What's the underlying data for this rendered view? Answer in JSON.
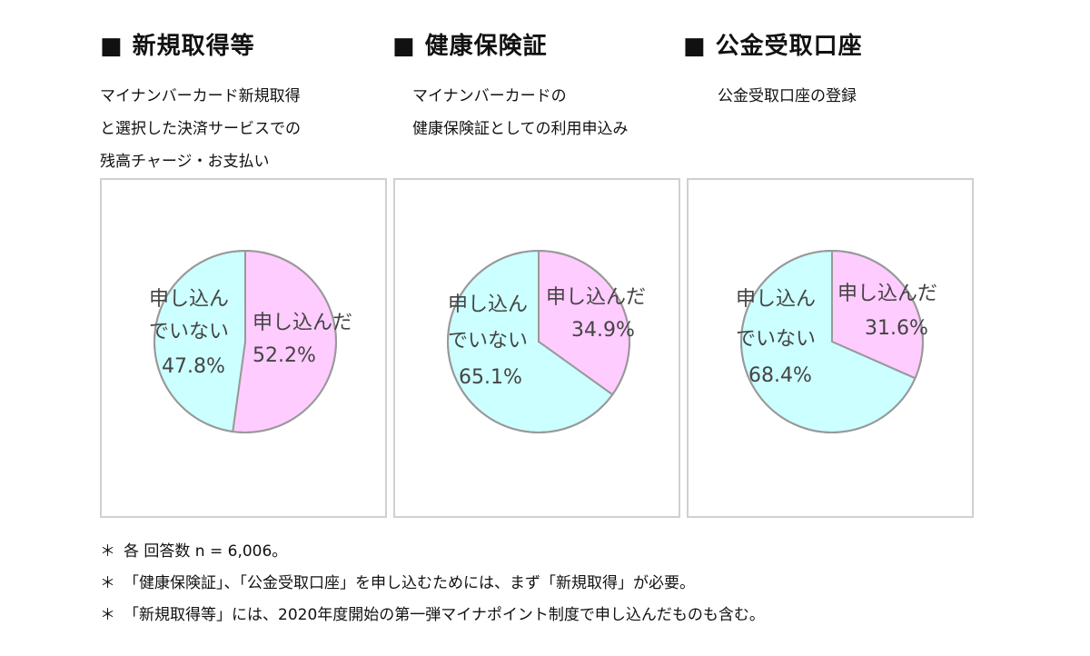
{
  "chart_data": [
    {
      "type": "pie",
      "title": "新規取得等",
      "description": [
        "マイナンバーカード新規取得",
        "と選択した決済サービスでの",
        "残高チャージ・お支払い"
      ],
      "slices": [
        {
          "label": "申し込んだ",
          "value": 52.2,
          "value_text": "52.2%",
          "color": "#ffccff"
        },
        {
          "label": "申し込んでいない",
          "label_lines": [
            "申し込ん",
            "でいない"
          ],
          "value": 47.8,
          "value_text": "47.8%",
          "color": "#ccffff"
        }
      ]
    },
    {
      "type": "pie",
      "title": "健康保険証",
      "description": [
        "マイナンバーカードの",
        "健康保険証としての利用申込み"
      ],
      "slices": [
        {
          "label": "申し込んだ",
          "value": 34.9,
          "value_text": "34.9%",
          "color": "#ffccff"
        },
        {
          "label": "申し込んでいない",
          "label_lines": [
            "申し込ん",
            "でいない"
          ],
          "value": 65.1,
          "value_text": "65.1%",
          "color": "#ccffff"
        }
      ]
    },
    {
      "type": "pie",
      "title": "公金受取口座",
      "description": [
        "公金受取口座の登録"
      ],
      "slices": [
        {
          "label": "申し込んだ",
          "value": 31.6,
          "value_text": "31.6%",
          "color": "#ffccff"
        },
        {
          "label": "申し込んでいない",
          "label_lines": [
            "申し込ん",
            "でいない"
          ],
          "value": 68.4,
          "value_text": "68.4%",
          "color": "#ccffff"
        }
      ]
    }
  ],
  "heading_marker": "■",
  "notes": [
    {
      "marker": "＊",
      "text": "各 回答数 n = 6,006。"
    },
    {
      "marker": "＊",
      "text": "「健康保険証」、「公金受取口座」を申し込むためには、まず「新規取得」が必要。"
    },
    {
      "marker": "＊",
      "text": "「新規取得等」には、2020年度開始の第一弾マイナポイント制度で申し込んだものも含む。"
    }
  ]
}
